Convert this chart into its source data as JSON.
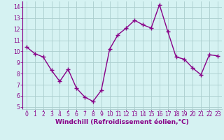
{
  "x": [
    0,
    1,
    2,
    3,
    4,
    5,
    6,
    7,
    8,
    9,
    10,
    11,
    12,
    13,
    14,
    15,
    16,
    17,
    18,
    19,
    20,
    21,
    22,
    23
  ],
  "y": [
    10.4,
    9.8,
    9.5,
    8.3,
    7.3,
    8.4,
    6.7,
    5.9,
    5.5,
    6.5,
    10.2,
    11.5,
    12.1,
    12.8,
    12.4,
    12.1,
    14.2,
    11.8,
    9.5,
    9.3,
    8.5,
    7.9,
    9.7,
    9.6
  ],
  "line_color": "#880088",
  "marker": "+",
  "markersize": 4,
  "markeredgewidth": 1.0,
  "linewidth": 1.0,
  "bg_color": "#d5f2f2",
  "grid_color": "#aacece",
  "xlabel": "Windchill (Refroidissement éolien,°C)",
  "xlabel_color": "#880088",
  "xlabel_fontsize": 6.5,
  "tick_color": "#880088",
  "tick_fontsize": 5.5,
  "ylim": [
    4.8,
    14.5
  ],
  "yticks": [
    5,
    6,
    7,
    8,
    9,
    10,
    11,
    12,
    13,
    14
  ],
  "xlim": [
    -0.5,
    23.5
  ],
  "xticks": [
    0,
    1,
    2,
    3,
    4,
    5,
    6,
    7,
    8,
    9,
    10,
    11,
    12,
    13,
    14,
    15,
    16,
    17,
    18,
    19,
    20,
    21,
    22,
    23
  ]
}
